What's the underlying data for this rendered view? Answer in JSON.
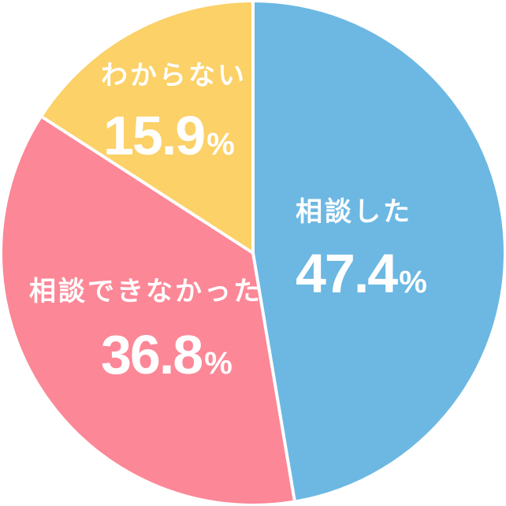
{
  "chart_data": {
    "type": "pie",
    "unit": "%",
    "start_angle_deg": -90,
    "direction": "clockwise",
    "legend_position": "none",
    "labels_inside_slices": true,
    "text_color": "#FFFFFF",
    "separator_color": "#FFFFFF",
    "background_color": "#FFFFFF",
    "slices": [
      {
        "label": "相談した",
        "value": 47.4,
        "value_text": "47.4",
        "color": "#6CB8E3"
      },
      {
        "label": "相談できなかった",
        "value": 36.8,
        "value_text": "36.8",
        "color": "#FC8797"
      },
      {
        "label": "わからない",
        "value": 15.9,
        "value_text": "15.9",
        "color": "#FBD168"
      }
    ]
  }
}
